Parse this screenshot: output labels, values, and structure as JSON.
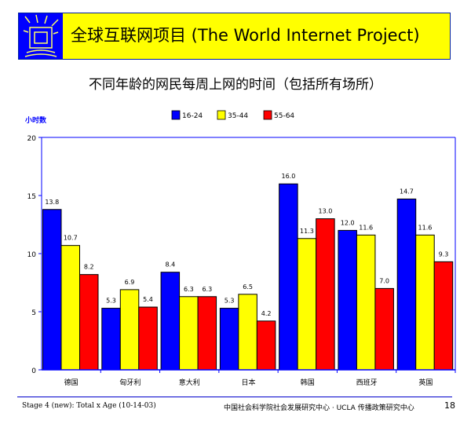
{
  "header": {
    "title": "全球互联网项目 (The World Internet Project)",
    "logo_icon": "monitor-rays-icon"
  },
  "subtitle": "不同年龄的网民每周上网的时间（包括所有场所）",
  "chart_data": {
    "type": "bar",
    "title": "",
    "ylabel": "小时数",
    "xlabel": "",
    "ylim": [
      0,
      20
    ],
    "yticks": [
      0,
      5,
      10,
      15,
      20
    ],
    "grid": false,
    "legend_placement": "top",
    "categories": [
      "德国",
      "匈牙利",
      "意大利",
      "日本",
      "韩国",
      "西班牙",
      "英国"
    ],
    "series": [
      {
        "name": "16-24",
        "color": "#0000ff",
        "values": [
          13.8,
          5.3,
          8.4,
          5.3,
          16.0,
          12.0,
          14.7
        ]
      },
      {
        "name": "35-44",
        "color": "#ffff00",
        "values": [
          10.7,
          6.9,
          6.3,
          6.5,
          11.3,
          11.6,
          11.6
        ]
      },
      {
        "name": "55-64",
        "color": "#ff0000",
        "values": [
          8.2,
          5.4,
          6.3,
          4.2,
          13.0,
          7.0,
          9.3
        ]
      }
    ]
  },
  "footer": {
    "left": "Stage 4 (new): Total x Age (10-14-03)",
    "center": "中国社会科学院社会发展研究中心 · UCLA 传播政策研究中心",
    "page": "18"
  }
}
